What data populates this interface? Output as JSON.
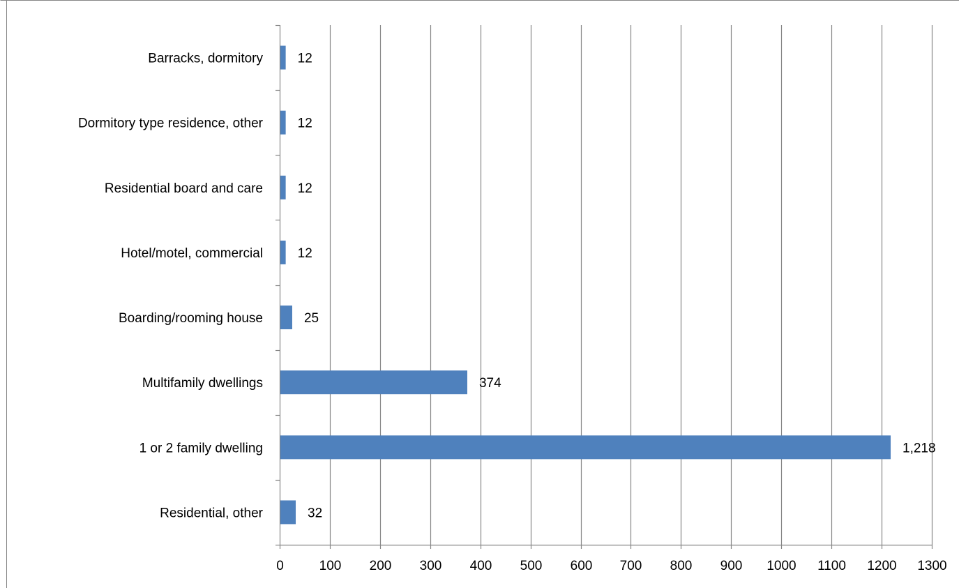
{
  "chart_data": {
    "type": "bar",
    "orientation": "horizontal",
    "categories": [
      "Residential, other",
      "1 or 2 family dwelling",
      "Multifamily dwellings",
      "Boarding/rooming house",
      "Hotel/motel, commercial",
      "Residential board and care",
      "Dormitory type residence, other",
      "Barracks, dormitory"
    ],
    "values": [
      32,
      1218,
      374,
      25,
      12,
      12,
      12,
      12
    ],
    "data_labels": [
      "32",
      "1,218",
      "374",
      "25",
      "12",
      "12",
      "12",
      "12"
    ],
    "xlim": [
      0,
      1300
    ],
    "x_ticks": [
      0,
      100,
      200,
      300,
      400,
      500,
      600,
      700,
      800,
      900,
      1000,
      1100,
      1200,
      1300
    ],
    "grid": "vertical",
    "legend": "none",
    "title": "",
    "xlabel": "",
    "ylabel": "",
    "colors": {
      "bar": "#4f81bd",
      "grid": "#868686",
      "axis": "#868686",
      "frame": "#868686",
      "text": "#000000"
    }
  }
}
